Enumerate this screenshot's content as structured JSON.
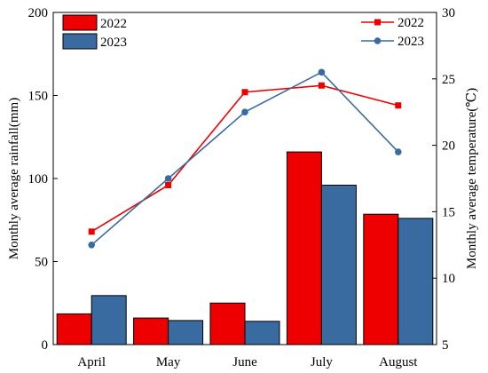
{
  "chart_data": {
    "type": "bar",
    "categories": [
      "April",
      "May",
      "June",
      "July",
      "August"
    ],
    "title": "",
    "ylabel": "Monthly average rainfall(mm)",
    "y2label": "Monthly average temperature(℃)",
    "ylim": [
      0,
      200
    ],
    "y2lim": [
      5,
      30
    ],
    "yticks": [
      0,
      50,
      100,
      150,
      200
    ],
    "y2ticks": [
      5,
      10,
      15,
      20,
      25,
      30
    ],
    "grid": false,
    "bar_series": [
      {
        "name": "2022",
        "color": "#ee0000",
        "values": [
          18.5,
          16,
          25,
          116,
          78.5
        ]
      },
      {
        "name": "2023",
        "color": "#3a6ba0",
        "values": [
          29.5,
          14.5,
          14,
          96,
          76
        ]
      }
    ],
    "line_series": [
      {
        "name": "2022",
        "color": "#ee0000",
        "marker": "square",
        "values": [
          13.5,
          17,
          24,
          24.5,
          23
        ]
      },
      {
        "name": "2023",
        "color": "#3a6ba0",
        "marker": "circle",
        "values": [
          12.5,
          17.5,
          22.5,
          25.5,
          19.5
        ]
      }
    ],
    "bar_legend_position": "top-left",
    "line_legend_position": "top-right"
  }
}
